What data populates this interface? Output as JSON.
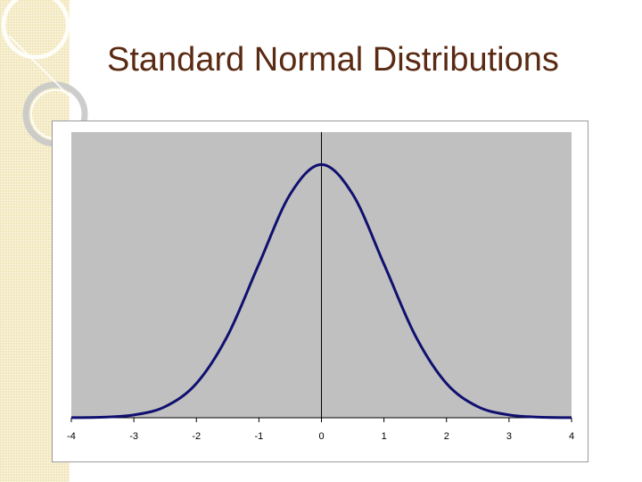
{
  "slide": {
    "title": "Standard Normal Distributions"
  },
  "chart_data": {
    "type": "line",
    "title": "",
    "xlabel": "",
    "ylabel": "",
    "xlim": [
      -4,
      4
    ],
    "ylim": [
      0,
      0.45
    ],
    "x_ticks": [
      "-4",
      "-3",
      "-2",
      "-1",
      "0",
      "1",
      "2",
      "3",
      "4"
    ],
    "grid": false,
    "legend": "none",
    "series": [
      {
        "x": [
          -4,
          -3.5,
          -3,
          -2.5,
          -2,
          -1.5,
          -1,
          -0.5,
          0,
          0.5,
          1,
          1.5,
          2,
          2.5,
          3,
          3.5,
          4
        ],
        "y": [
          0.0001,
          0.0009,
          0.0044,
          0.0175,
          0.054,
          0.1295,
          0.242,
          0.3521,
          0.3989,
          0.3521,
          0.242,
          0.1295,
          0.054,
          0.0175,
          0.0044,
          0.0009,
          0.0001
        ]
      }
    ],
    "colors": {
      "curve": "#101070",
      "plot_background": "#c0c0c0",
      "axis": "#000000"
    }
  }
}
